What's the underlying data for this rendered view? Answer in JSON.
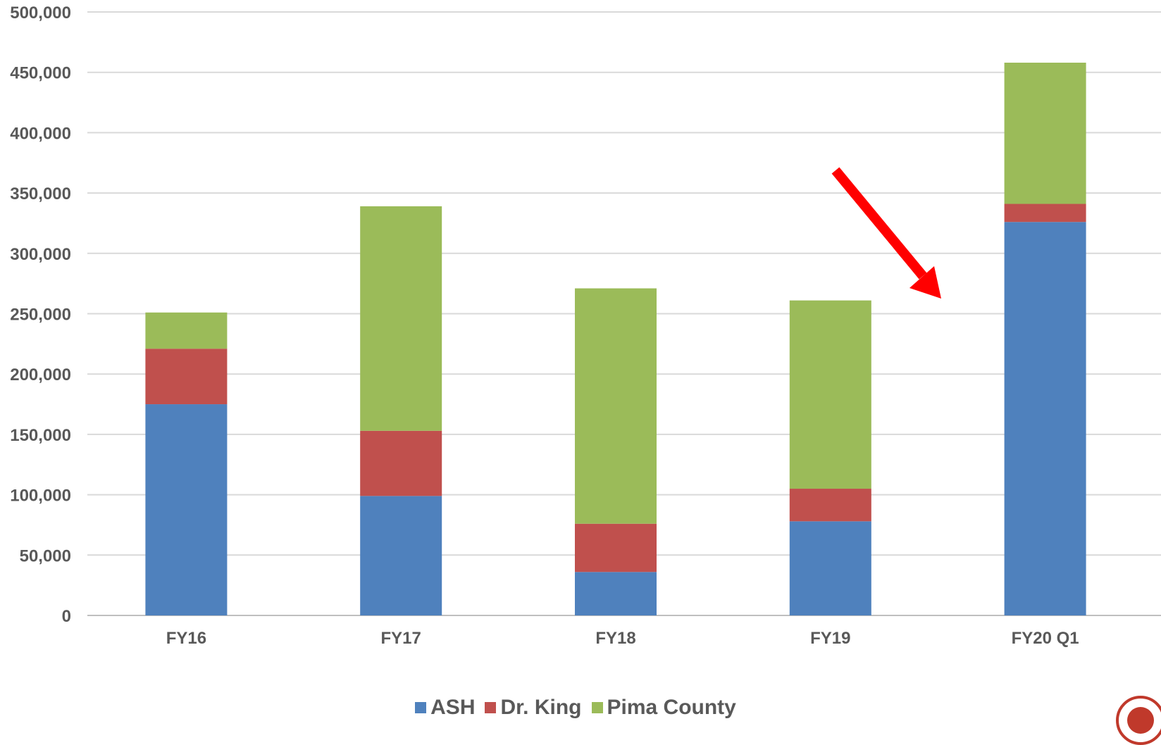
{
  "chart_data": {
    "type": "bar",
    "stacked": true,
    "categories": [
      "FY16",
      "FY17",
      "FY18",
      "FY19",
      "FY20 Q1"
    ],
    "series": [
      {
        "name": "ASH",
        "color": "#4F81BD",
        "values": [
          175000,
          99000,
          36000,
          78000,
          326000
        ]
      },
      {
        "name": "Dr. King",
        "color": "#C0504D",
        "values": [
          46000,
          54000,
          40000,
          27000,
          15000
        ]
      },
      {
        "name": "Pima County",
        "color": "#9BBB59",
        "values": [
          30000,
          186000,
          195000,
          156000,
          117000
        ]
      }
    ],
    "ylim": [
      0,
      500000
    ],
    "yticks": [
      "0",
      "50,000",
      "100,000",
      "150,000",
      "200,000",
      "250,000",
      "300,000",
      "350,000",
      "400,000",
      "450,000",
      "500,000"
    ],
    "grid": true,
    "legend_position": "bottom",
    "annotation": {
      "type": "arrow",
      "color": "#FF0000",
      "points_to": "FY20 Q1"
    }
  }
}
